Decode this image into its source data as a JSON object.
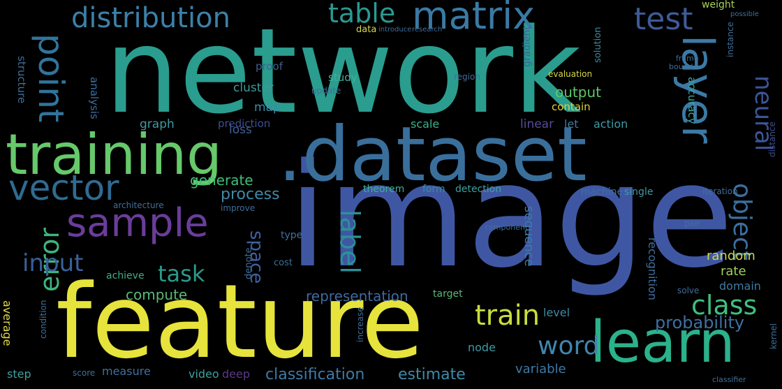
{
  "words": [
    {
      "text": "network",
      "color": "#2a9d8f"
    },
    {
      "text": "image",
      "color": "#3f57a3"
    },
    {
      "text": "feature",
      "color": "#e6e33c"
    },
    {
      "text": "training",
      "color": "#66c96a"
    },
    {
      "text": ".dataset",
      "color": "#3a6f9c"
    },
    {
      "text": "learn",
      "color": "#2bb28b"
    },
    {
      "text": "layer",
      "color": "#3b7aa6"
    },
    {
      "text": "sample",
      "color": "#6a3d9a"
    },
    {
      "text": "vector",
      "color": "#2f6b91"
    },
    {
      "text": "point",
      "color": "#32749c"
    },
    {
      "text": "distribution",
      "color": "#3d80a8"
    },
    {
      "text": "table",
      "color": "#2a9a92"
    },
    {
      "text": "matrix",
      "color": "#3a7aa4"
    },
    {
      "text": "test",
      "color": "#3f5b97"
    },
    {
      "text": "neural",
      "color": "#3c5596"
    },
    {
      "text": "object",
      "color": "#3b6fa0"
    },
    {
      "text": "label",
      "color": "#2d8f98"
    },
    {
      "text": "class",
      "color": "#3fc07e"
    },
    {
      "text": "train",
      "color": "#c9de3d"
    },
    {
      "text": "word",
      "color": "#3f86ad"
    },
    {
      "text": "error",
      "color": "#3fb57e"
    },
    {
      "text": "input",
      "color": "#3a5f9a"
    },
    {
      "text": "task",
      "color": "#2a9a8a"
    },
    {
      "text": "probability",
      "color": "#3f6fa2"
    },
    {
      "text": "space",
      "color": "#3f60a0"
    },
    {
      "text": "process",
      "color": "#3f8aa8"
    },
    {
      "text": "generate",
      "color": "#3fbf7a"
    },
    {
      "text": "classification",
      "color": "#3f7aa6"
    },
    {
      "text": "representation",
      "color": "#3f6aa0"
    },
    {
      "text": "estimate",
      "color": "#3f8aa8"
    },
    {
      "text": "compute",
      "color": "#5ab87a"
    },
    {
      "text": "output",
      "color": "#5ec86a"
    },
    {
      "text": "graph",
      "color": "#3f9aa0"
    },
    {
      "text": "cluster",
      "color": "#3f9a9a"
    },
    {
      "text": "map",
      "color": "#3f8aa8"
    },
    {
      "text": "loss",
      "color": "#3f5f9a"
    },
    {
      "text": "prediction",
      "color": "#3d4f8f"
    },
    {
      "text": "analysis",
      "color": "#3f6fa0"
    },
    {
      "text": "accuracy",
      "color": "#3fa8a0"
    },
    {
      "text": "structure",
      "color": "#3f6f9a"
    },
    {
      "text": "study",
      "color": "#3fb09a"
    },
    {
      "text": "proof",
      "color": "#3f5f8f"
    },
    {
      "text": "contain",
      "color": "#e0d03a"
    },
    {
      "text": "linear",
      "color": "#5a4a9a"
    },
    {
      "text": "let",
      "color": "#3f7aa0"
    },
    {
      "text": "action",
      "color": "#3f9aa6"
    },
    {
      "text": "scale",
      "color": "#3fb08a"
    },
    {
      "text": "sequence",
      "color": "#3f7aa6"
    },
    {
      "text": "recognition",
      "color": "#3f6fa0"
    },
    {
      "text": "level",
      "color": "#3f8aa6"
    },
    {
      "text": "variable",
      "color": "#3f7aa6"
    },
    {
      "text": "node",
      "color": "#3f9aa6"
    },
    {
      "text": "random",
      "color": "#d0d84a"
    },
    {
      "text": "rate",
      "color": "#a0d05a"
    },
    {
      "text": "domain",
      "color": "#3f7aa0"
    },
    {
      "text": "video",
      "color": "#3fa0a0"
    },
    {
      "text": "deep",
      "color": "#5a3a8a"
    },
    {
      "text": "measure",
      "color": "#3f6fa0"
    },
    {
      "text": "step",
      "color": "#3fa0a0"
    },
    {
      "text": "average",
      "color": "#e0d84a"
    },
    {
      "text": "achieve",
      "color": "#3fb08a"
    },
    {
      "text": "machine",
      "color": "#3f6fa0"
    },
    {
      "text": "single",
      "color": "#3f9aa6"
    },
    {
      "text": "theorem",
      "color": "#3fb09a"
    },
    {
      "text": "form",
      "color": "#3f8aa6"
    },
    {
      "text": "detection",
      "color": "#3fa0a0"
    },
    {
      "text": "target",
      "color": "#5ab87a"
    },
    {
      "text": "evaluation",
      "color": "#d8d84a"
    },
    {
      "text": "gradient",
      "color": "#3f5f9a"
    },
    {
      "text": "solution",
      "color": "#3f8aa6"
    },
    {
      "text": "weight",
      "color": "#a8d05a"
    },
    {
      "text": "data",
      "color": "#d8d84a"
    },
    {
      "text": "region",
      "color": "#3f6f9a"
    },
    {
      "text": "update",
      "color": "#3f6f9a"
    },
    {
      "text": "type",
      "color": "#3f6fa0"
    },
    {
      "text": "denote",
      "color": "#3f6f9a"
    },
    {
      "text": "cost",
      "color": "#3f6f9a"
    },
    {
      "text": "iteration",
      "color": "#3f6f9a"
    },
    {
      "text": "instance",
      "color": "#3f6f9a"
    },
    {
      "text": "distance",
      "color": "#3f4f8f"
    },
    {
      "text": "kernel",
      "color": "#3f6f9a"
    },
    {
      "text": "solve",
      "color": "#3f6f9a"
    },
    {
      "text": "pair",
      "color": "#3f6f9a"
    },
    {
      "text": "increase",
      "color": "#3f6f9a"
    },
    {
      "text": "architecture",
      "color": "#3f6f9a"
    },
    {
      "text": "improve",
      "color": "#3f6f9a"
    },
    {
      "text": "condition",
      "color": "#3f6f9a"
    },
    {
      "text": "score",
      "color": "#3f6f9a"
    },
    {
      "text": "frame",
      "color": "#3f6f9a"
    },
    {
      "text": "bound",
      "color": "#3f6f9a"
    },
    {
      "text": "component",
      "color": "#3f6f9a"
    },
    {
      "text": "classifier",
      "color": "#3f6f9a"
    },
    {
      "text": "possible",
      "color": "#3f6f9a"
    },
    {
      "text": "introduce",
      "color": "#3f6f9a"
    },
    {
      "text": "research",
      "color": "#3f6f9a"
    }
  ]
}
